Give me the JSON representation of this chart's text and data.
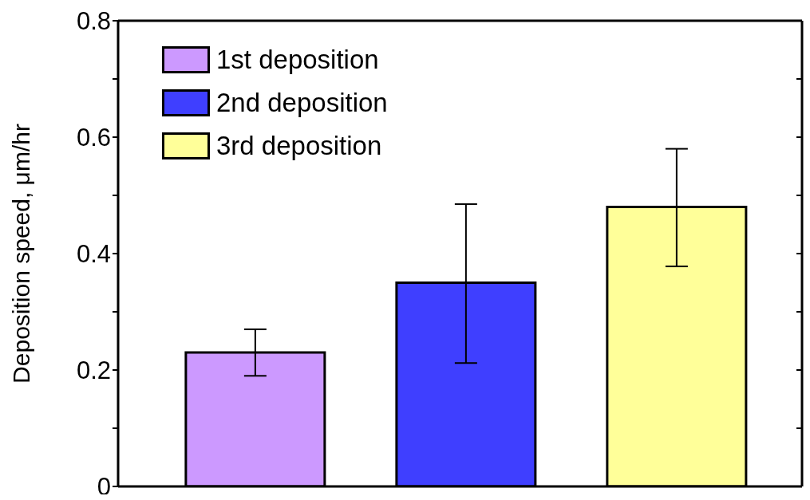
{
  "chart_data": {
    "type": "bar",
    "ylabel": "Deposition speed, μm/hr",
    "categories": [
      null,
      null,
      null
    ],
    "series": [
      {
        "name": "1st deposition",
        "color": "#cc99ff",
        "values": [
          0.23,
          null,
          null
        ],
        "errors": [
          [
            0.19,
            0.27
          ],
          null,
          null
        ]
      },
      {
        "name": "2nd deposition",
        "color": "#3f3fff",
        "values": [
          null,
          0.35,
          null
        ],
        "errors": [
          null,
          [
            0.212,
            0.485
          ],
          null
        ]
      },
      {
        "name": "3rd deposition",
        "color": "#ffff99",
        "values": [
          null,
          null,
          0.48
        ],
        "errors": [
          null,
          null,
          [
            0.378,
            0.58
          ]
        ]
      }
    ],
    "ylim": [
      0,
      0.8
    ],
    "yticks": [
      0,
      {
        "value": 0.1,
        "label": null
      },
      0.2,
      {
        "value": 0.3,
        "label": null
      },
      0.4,
      {
        "value": 0.5,
        "label": null
      },
      0.6,
      {
        "value": 0.7,
        "label": null
      },
      0.8
    ],
    "legend": "top left",
    "grid": false
  }
}
